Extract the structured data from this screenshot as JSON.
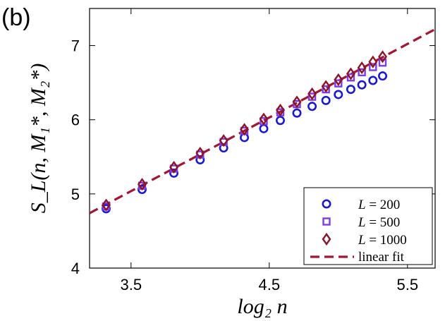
{
  "panel_label": "(b)",
  "chart_data": {
    "type": "scatter",
    "title": "",
    "xlabel": "log₂ n",
    "ylabel": "S_L(n, M₁*, M₂*)",
    "xlim": [
      3.2,
      5.7
    ],
    "ylim": [
      4,
      7.5
    ],
    "xticks": [
      3.5,
      4.5,
      5.5
    ],
    "xtick_labels": [
      "3.5",
      "4.5",
      "5.5"
    ],
    "yticks": [
      4,
      5,
      6,
      7
    ],
    "ytick_labels": [
      "4",
      "5",
      "6",
      "7"
    ],
    "x": [
      3.32,
      3.58,
      3.81,
      4.0,
      4.17,
      4.32,
      4.46,
      4.58,
      4.7,
      4.81,
      4.91,
      5.0,
      5.09,
      5.17,
      5.25,
      5.32
    ],
    "series": [
      {
        "name": "L = 200",
        "label_var": "L",
        "label_value": " = 200",
        "marker": "circle",
        "color": "#1a1ad6",
        "values": [
          4.8,
          5.06,
          5.28,
          5.46,
          5.62,
          5.76,
          5.88,
          5.99,
          6.09,
          6.18,
          6.26,
          6.34,
          6.41,
          6.47,
          6.53,
          6.59
        ]
      },
      {
        "name": "L = 500",
        "label_var": "L",
        "label_value": " = 500",
        "marker": "square",
        "color": "#7d3ce8",
        "values": [
          4.83,
          5.11,
          5.34,
          5.53,
          5.7,
          5.85,
          5.98,
          6.1,
          6.21,
          6.31,
          6.41,
          6.49,
          6.57,
          6.64,
          6.71,
          6.77
        ]
      },
      {
        "name": "L = 1000",
        "label_var": "L",
        "label_value": " = 1000",
        "marker": "diamond",
        "color": "#8b1428",
        "values": [
          4.85,
          5.13,
          5.36,
          5.55,
          5.72,
          5.87,
          6.01,
          6.13,
          6.24,
          6.35,
          6.45,
          6.54,
          6.62,
          6.7,
          6.78,
          6.85
        ]
      }
    ],
    "fit": {
      "name": "linear fit",
      "color": "#a51433",
      "style": "dashed",
      "x": [
        3.2,
        5.7
      ],
      "y": [
        4.74,
        7.22
      ]
    },
    "legend_position": "bottom-right",
    "grid": false
  }
}
